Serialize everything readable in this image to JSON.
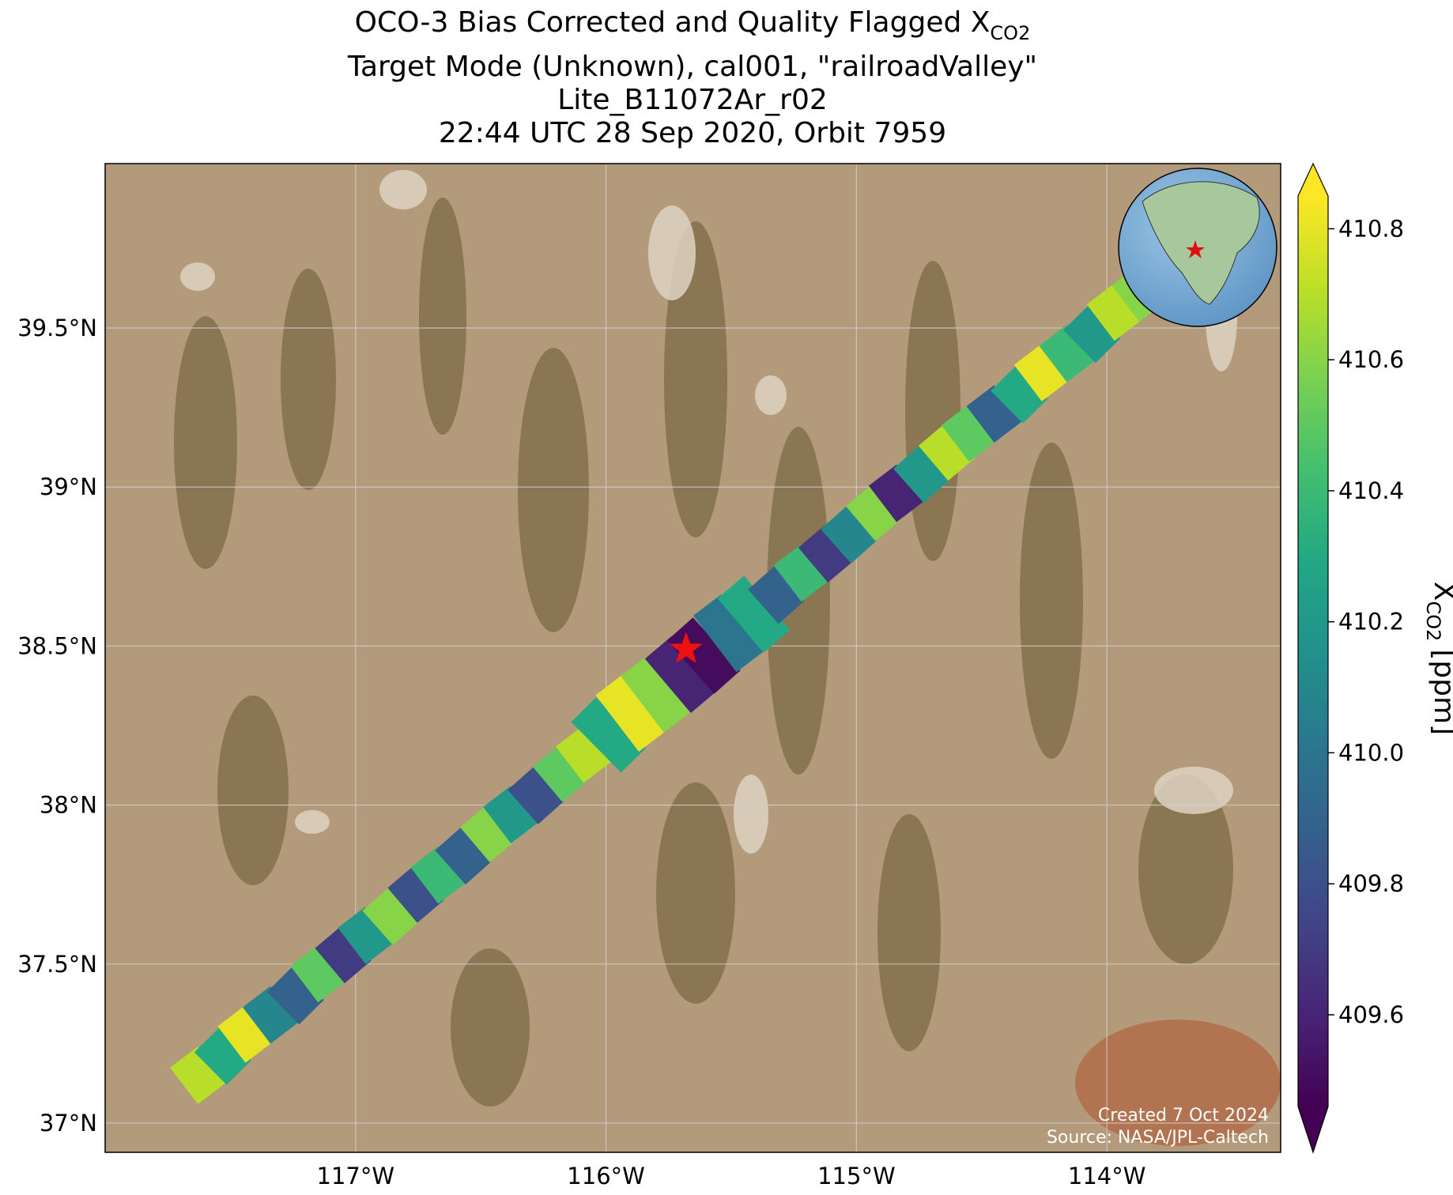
{
  "chart_data": {
    "type": "swath-map",
    "title_lines": [
      "Target Mode (Unknown), cal001, \"railroadValley\"",
      "Lite_B11072Ar_r02",
      "22:44 UTC 28 Sep 2020, Orbit 7959"
    ],
    "title_head": "OCO-3 Bias Corrected and Quality Flagged X",
    "title_subscript": "CO2",
    "xlim": [
      -118.0,
      -113.306
    ],
    "ylim": [
      36.908,
      40.017
    ],
    "xticks": [
      {
        "value": -117,
        "label": "117°W"
      },
      {
        "value": -116,
        "label": "116°W"
      },
      {
        "value": -115,
        "label": "115°W"
      },
      {
        "value": -114,
        "label": "114°W"
      }
    ],
    "yticks": [
      {
        "value": 37,
        "label": "37°N"
      },
      {
        "value": 37.5,
        "label": "37.5°N"
      },
      {
        "value": 38,
        "label": "38°N"
      },
      {
        "value": 38.5,
        "label": "38.5°N"
      },
      {
        "value": 39,
        "label": "39°N"
      },
      {
        "value": 39.5,
        "label": "39.5°N"
      }
    ],
    "grid": true,
    "x": [
      -117.63,
      -117.53,
      -117.44,
      -117.34,
      -117.24,
      -117.15,
      -117.05,
      -116.96,
      -116.86,
      -116.76,
      -116.67,
      -116.57,
      -116.47,
      -116.38,
      -116.28,
      -116.18,
      -116.09,
      -115.99,
      -115.9,
      -115.8,
      -115.7,
      -115.61,
      -115.51,
      -115.41,
      -115.32,
      -115.22,
      -115.12,
      -115.03,
      -114.93,
      -114.84,
      -114.74,
      -114.64,
      -114.55,
      -114.45,
      -114.35,
      -114.26,
      -114.16,
      -114.06,
      -113.97,
      -113.87
    ],
    "y": [
      37.15,
      37.21,
      37.28,
      37.34,
      37.4,
      37.47,
      37.53,
      37.59,
      37.65,
      37.72,
      37.78,
      37.84,
      37.91,
      37.97,
      38.03,
      38.1,
      38.16,
      38.22,
      38.29,
      38.35,
      38.41,
      38.47,
      38.54,
      38.6,
      38.66,
      38.73,
      38.79,
      38.85,
      38.92,
      38.98,
      39.04,
      39.11,
      39.17,
      39.23,
      39.29,
      39.36,
      39.42,
      39.48,
      39.55,
      39.61
    ],
    "values": [
      410.7,
      410.3,
      410.8,
      410.1,
      409.9,
      410.5,
      409.7,
      410.2,
      410.6,
      409.8,
      410.4,
      409.9,
      410.6,
      410.2,
      409.8,
      410.5,
      410.7,
      410.3,
      410.8,
      410.6,
      409.6,
      409.5,
      410.0,
      410.3,
      409.9,
      410.4,
      409.7,
      410.1,
      410.6,
      409.6,
      410.2,
      410.7,
      410.5,
      409.9,
      410.3,
      410.8,
      410.4,
      410.2,
      410.7,
      410.6
    ],
    "target": {
      "lon": -115.68,
      "lat": 38.49
    },
    "colorbar": {
      "clim": [
        409.46,
        410.85
      ],
      "ticks": [
        409.6,
        409.8,
        {
          "value": 410,
          "label": "410.0"
        },
        410.2,
        410.4,
        410.6,
        410.8
      ],
      "label_head": "X",
      "label_subscript": "CO2",
      "label_unit": "[ppm]",
      "colormap": "viridis",
      "extend": "both"
    },
    "footer": [
      "Created 7 Oct 2024",
      "Source: NASA/JPL-Caltech"
    ]
  }
}
